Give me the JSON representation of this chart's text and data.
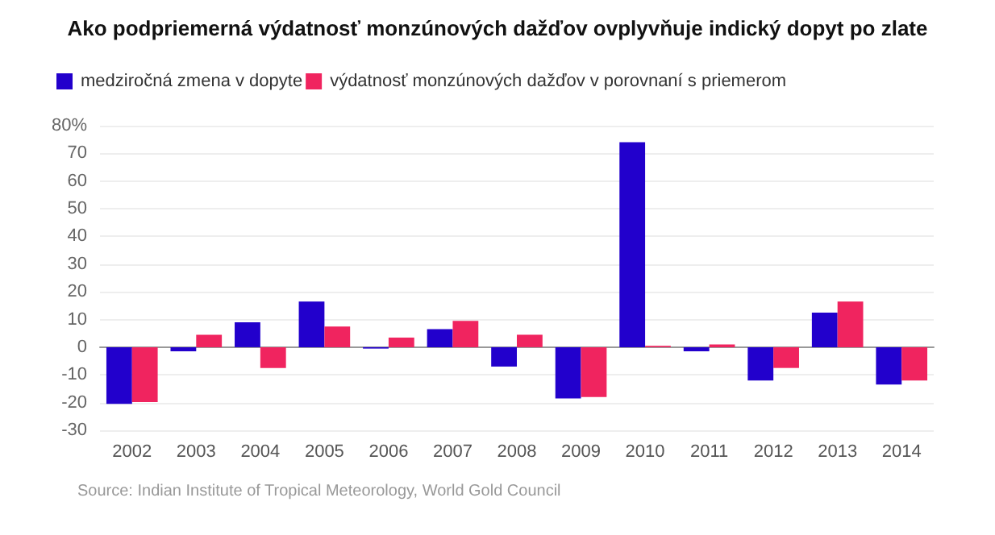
{
  "chart_data": {
    "type": "bar",
    "title": "Ako podpriemerná výdatnosť monzúnových dažďov ovplyvňuje indický dopyt po zlate",
    "categories": [
      "2002",
      "2003",
      "2004",
      "2005",
      "2006",
      "2007",
      "2008",
      "2009",
      "2010",
      "2011",
      "2012",
      "2013",
      "2014"
    ],
    "series": [
      {
        "name": "medziročná zmena v dopyte",
        "color": "#2200cc",
        "values": [
          -20.5,
          -1.5,
          9,
          16.5,
          -0.5,
          6.5,
          -7,
          -18.5,
          74,
          -1.5,
          -12,
          12.5,
          -13.5
        ]
      },
      {
        "name": "výdatnosť monzúnových dažďov v porovnaní s priemerom",
        "color": "#f0245f",
        "values": [
          -19.8,
          4.5,
          -7.5,
          7.5,
          3.5,
          9.5,
          4.5,
          -18,
          0.5,
          1,
          -7.5,
          16.5,
          -12
        ]
      }
    ],
    "ylim": [
      -30,
      80
    ],
    "yticks": [
      -30,
      -20,
      -10,
      0,
      10,
      20,
      30,
      40,
      50,
      60,
      70,
      {
        "value": 80,
        "label": "80%"
      }
    ],
    "grid": "y",
    "legend": "top left",
    "annotations": [
      "Source: Indian Institute of Tropical Meteorology, World Gold Council"
    ]
  }
}
